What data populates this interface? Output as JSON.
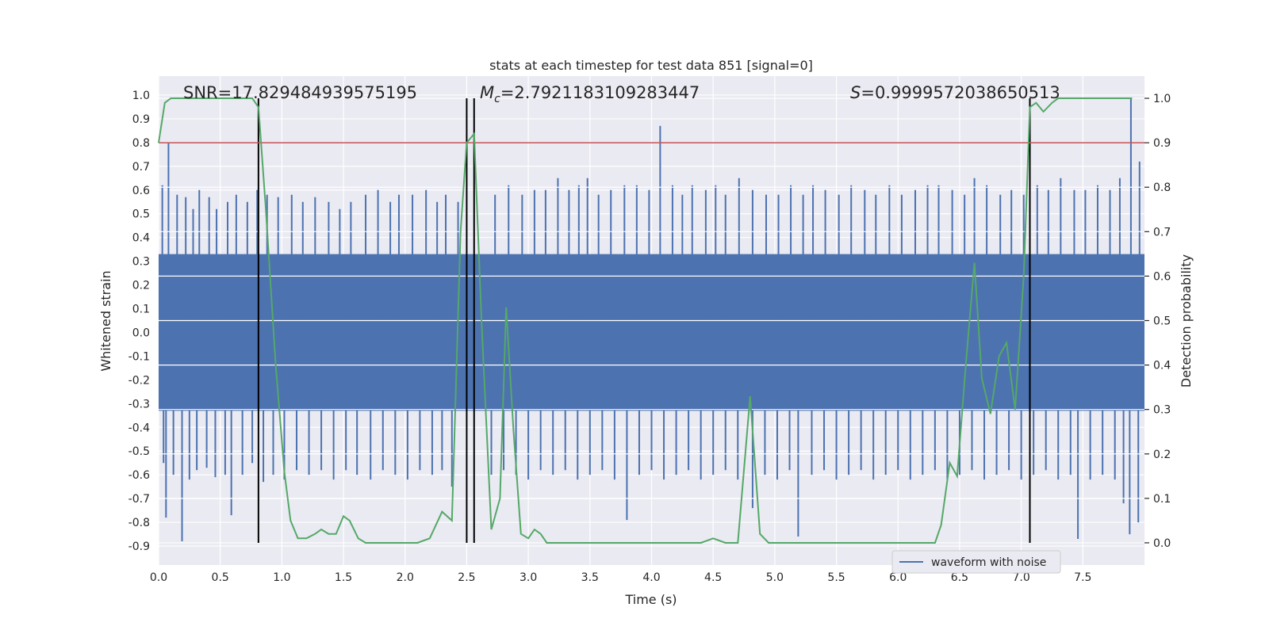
{
  "chart_data": {
    "type": "line",
    "title": "stats at each timestep for test data 851 [signal=0]",
    "xlabel": "Time (s)",
    "ylabel_left": "Whitened strain",
    "ylabel_right": "Detection probability",
    "xlim": [
      0.0,
      8.0
    ],
    "ylim_left": [
      -0.98,
      1.08
    ],
    "ylim_right": [
      -0.05,
      1.05
    ],
    "x_ticks": [
      "0.0",
      "0.5",
      "1.0",
      "1.5",
      "2.0",
      "2.5",
      "3.0",
      "3.5",
      "4.0",
      "4.5",
      "5.0",
      "5.5",
      "6.0",
      "6.5",
      "7.0",
      "7.5"
    ],
    "x_tick_values": [
      0,
      0.5,
      1,
      1.5,
      2,
      2.5,
      3,
      3.5,
      4,
      4.5,
      5,
      5.5,
      6,
      6.5,
      7,
      7.5
    ],
    "y_left_ticks": [
      "1.0",
      "0.9",
      "0.8",
      "0.7",
      "0.6",
      "0.5",
      "0.4",
      "0.3",
      "0.2",
      "0.1",
      "0.0",
      "-0.1",
      "-0.2",
      "-0.3",
      "-0.4",
      "-0.5",
      "-0.6",
      "-0.7",
      "-0.8",
      "-0.9"
    ],
    "y_left_tick_values": [
      1.0,
      0.9,
      0.8,
      0.7,
      0.6,
      0.5,
      0.4,
      0.3,
      0.2,
      0.1,
      0.0,
      -0.1,
      -0.2,
      -0.3,
      -0.4,
      -0.5,
      -0.6,
      -0.7,
      -0.8,
      -0.9
    ],
    "y_right_ticks": [
      "1.0",
      "0.9",
      "0.8",
      "0.7",
      "0.6",
      "0.5",
      "0.4",
      "0.3",
      "0.2",
      "0.1",
      "0.0"
    ],
    "y_right_tick_values": [
      1.0,
      0.9,
      0.8,
      0.7,
      0.6,
      0.5,
      0.4,
      0.3,
      0.2,
      0.1,
      0.0
    ],
    "annotations": {
      "snr": "SNR=17.829484939575195",
      "mc_symbol": "M",
      "mc_sub": "c",
      "mc_value": "=2.7921183109283447",
      "s_symbol": "S",
      "s_value": "=0.9999572038650513"
    },
    "legend": {
      "label": "waveform with noise",
      "location": "lower-right"
    },
    "threshold": {
      "value": 0.9,
      "axis": "right",
      "color": "#c44e52"
    },
    "vertical_lines": [
      0.81,
      2.5,
      2.56,
      7.07
    ],
    "waveform": {
      "name": "waveform with noise",
      "color": "#4c72b0",
      "band": [
        -0.33,
        0.33
      ],
      "spikes_up": [
        [
          0.03,
          0.62
        ],
        [
          0.08,
          0.8
        ],
        [
          0.15,
          0.58
        ],
        [
          0.22,
          0.57
        ],
        [
          0.28,
          0.52
        ],
        [
          0.33,
          0.6
        ],
        [
          0.41,
          0.57
        ],
        [
          0.47,
          0.52
        ],
        [
          0.56,
          0.55
        ],
        [
          0.63,
          0.58
        ],
        [
          0.72,
          0.55
        ],
        [
          0.8,
          0.6
        ],
        [
          0.88,
          0.58
        ],
        [
          0.97,
          0.57
        ],
        [
          1.08,
          0.58
        ],
        [
          1.17,
          0.55
        ],
        [
          1.27,
          0.57
        ],
        [
          1.38,
          0.55
        ],
        [
          1.47,
          0.52
        ],
        [
          1.56,
          0.55
        ],
        [
          1.68,
          0.58
        ],
        [
          1.78,
          0.6
        ],
        [
          1.88,
          0.55
        ],
        [
          1.95,
          0.58
        ],
        [
          2.06,
          0.58
        ],
        [
          2.17,
          0.6
        ],
        [
          2.26,
          0.55
        ],
        [
          2.33,
          0.58
        ],
        [
          2.43,
          0.55
        ],
        [
          2.73,
          0.58
        ],
        [
          2.84,
          0.62
        ],
        [
          2.95,
          0.58
        ],
        [
          3.05,
          0.6
        ],
        [
          3.14,
          0.6
        ],
        [
          3.24,
          0.65
        ],
        [
          3.33,
          0.6
        ],
        [
          3.41,
          0.62
        ],
        [
          3.48,
          0.65
        ],
        [
          3.57,
          0.58
        ],
        [
          3.67,
          0.6
        ],
        [
          3.78,
          0.62
        ],
        [
          3.88,
          0.62
        ],
        [
          3.98,
          0.6
        ],
        [
          4.07,
          0.87
        ],
        [
          4.17,
          0.62
        ],
        [
          4.25,
          0.58
        ],
        [
          4.33,
          0.62
        ],
        [
          4.44,
          0.6
        ],
        [
          4.52,
          0.62
        ],
        [
          4.6,
          0.58
        ],
        [
          4.71,
          0.65
        ],
        [
          4.82,
          0.6
        ],
        [
          4.93,
          0.58
        ],
        [
          5.03,
          0.58
        ],
        [
          5.13,
          0.62
        ],
        [
          5.23,
          0.58
        ],
        [
          5.31,
          0.62
        ],
        [
          5.41,
          0.6
        ],
        [
          5.52,
          0.58
        ],
        [
          5.62,
          0.62
        ],
        [
          5.73,
          0.6
        ],
        [
          5.82,
          0.58
        ],
        [
          5.93,
          0.62
        ],
        [
          6.03,
          0.58
        ],
        [
          6.14,
          0.6
        ],
        [
          6.24,
          0.62
        ],
        [
          6.33,
          0.62
        ],
        [
          6.44,
          0.6
        ],
        [
          6.54,
          0.58
        ],
        [
          6.62,
          0.65
        ],
        [
          6.72,
          0.62
        ],
        [
          6.83,
          0.58
        ],
        [
          6.92,
          0.6
        ],
        [
          7.02,
          0.58
        ],
        [
          7.13,
          0.62
        ],
        [
          7.22,
          0.6
        ],
        [
          7.32,
          0.65
        ],
        [
          7.43,
          0.6
        ],
        [
          7.52,
          0.6
        ],
        [
          7.62,
          0.62
        ],
        [
          7.72,
          0.6
        ],
        [
          7.8,
          0.65
        ],
        [
          7.89,
          0.99
        ],
        [
          7.96,
          0.72
        ]
      ],
      "spikes_down": [
        [
          0.04,
          -0.55
        ],
        [
          0.06,
          -0.78
        ],
        [
          0.12,
          -0.6
        ],
        [
          0.19,
          -0.88
        ],
        [
          0.25,
          -0.62
        ],
        [
          0.31,
          -0.58
        ],
        [
          0.39,
          -0.57
        ],
        [
          0.46,
          -0.61
        ],
        [
          0.54,
          -0.6
        ],
        [
          0.59,
          -0.77
        ],
        [
          0.68,
          -0.6
        ],
        [
          0.76,
          -0.55
        ],
        [
          0.85,
          -0.63
        ],
        [
          0.93,
          -0.6
        ],
        [
          1.02,
          -0.62
        ],
        [
          1.12,
          -0.58
        ],
        [
          1.22,
          -0.6
        ],
        [
          1.32,
          -0.58
        ],
        [
          1.42,
          -0.62
        ],
        [
          1.52,
          -0.58
        ],
        [
          1.61,
          -0.6
        ],
        [
          1.72,
          -0.62
        ],
        [
          1.82,
          -0.58
        ],
        [
          1.92,
          -0.6
        ],
        [
          2.02,
          -0.62
        ],
        [
          2.12,
          -0.58
        ],
        [
          2.22,
          -0.6
        ],
        [
          2.3,
          -0.58
        ],
        [
          2.38,
          -0.65
        ],
        [
          2.7,
          -0.6
        ],
        [
          2.8,
          -0.58
        ],
        [
          2.9,
          -0.6
        ],
        [
          3.0,
          -0.62
        ],
        [
          3.1,
          -0.58
        ],
        [
          3.2,
          -0.6
        ],
        [
          3.3,
          -0.58
        ],
        [
          3.4,
          -0.62
        ],
        [
          3.5,
          -0.6
        ],
        [
          3.6,
          -0.58
        ],
        [
          3.7,
          -0.62
        ],
        [
          3.8,
          -0.79
        ],
        [
          3.9,
          -0.6
        ],
        [
          4.0,
          -0.58
        ],
        [
          4.1,
          -0.62
        ],
        [
          4.2,
          -0.6
        ],
        [
          4.3,
          -0.58
        ],
        [
          4.4,
          -0.62
        ],
        [
          4.5,
          -0.6
        ],
        [
          4.6,
          -0.58
        ],
        [
          4.7,
          -0.62
        ],
        [
          4.82,
          -0.74
        ],
        [
          4.92,
          -0.6
        ],
        [
          5.02,
          -0.62
        ],
        [
          5.12,
          -0.58
        ],
        [
          5.19,
          -0.86
        ],
        [
          5.3,
          -0.6
        ],
        [
          5.4,
          -0.58
        ],
        [
          5.5,
          -0.62
        ],
        [
          5.6,
          -0.6
        ],
        [
          5.7,
          -0.58
        ],
        [
          5.8,
          -0.62
        ],
        [
          5.9,
          -0.6
        ],
        [
          6.0,
          -0.58
        ],
        [
          6.1,
          -0.62
        ],
        [
          6.2,
          -0.6
        ],
        [
          6.3,
          -0.58
        ],
        [
          6.4,
          -0.62
        ],
        [
          6.5,
          -0.6
        ],
        [
          6.6,
          -0.58
        ],
        [
          6.7,
          -0.62
        ],
        [
          6.8,
          -0.6
        ],
        [
          6.9,
          -0.58
        ],
        [
          7.0,
          -0.62
        ],
        [
          7.1,
          -0.6
        ],
        [
          7.2,
          -0.58
        ],
        [
          7.3,
          -0.62
        ],
        [
          7.4,
          -0.6
        ],
        [
          7.46,
          -0.87
        ],
        [
          7.56,
          -0.62
        ],
        [
          7.66,
          -0.6
        ],
        [
          7.76,
          -0.62
        ],
        [
          7.83,
          -0.72
        ],
        [
          7.88,
          -0.85
        ],
        [
          7.95,
          -0.8
        ]
      ]
    },
    "detection_probability": {
      "color": "#55a868",
      "axis": "right",
      "x": [
        0.0,
        0.05,
        0.1,
        0.2,
        0.3,
        0.4,
        0.5,
        0.6,
        0.7,
        0.76,
        0.81,
        0.87,
        0.95,
        1.02,
        1.07,
        1.13,
        1.2,
        1.27,
        1.32,
        1.38,
        1.44,
        1.5,
        1.55,
        1.62,
        1.68,
        1.75,
        1.9,
        2.0,
        2.1,
        2.2,
        2.3,
        2.38,
        2.45,
        2.5,
        2.56,
        2.62,
        2.7,
        2.77,
        2.82,
        2.88,
        2.94,
        3.0,
        3.05,
        3.1,
        3.15,
        3.22,
        3.3,
        3.4,
        3.5,
        3.6,
        3.8,
        4.0,
        4.2,
        4.4,
        4.5,
        4.6,
        4.7,
        4.8,
        4.88,
        4.95,
        5.0,
        5.2,
        5.4,
        5.6,
        5.8,
        6.0,
        6.2,
        6.3,
        6.35,
        6.42,
        6.48,
        6.55,
        6.62,
        6.68,
        6.75,
        6.82,
        6.88,
        6.95,
        7.02,
        7.07,
        7.12,
        7.18,
        7.25,
        7.3,
        7.38,
        7.5,
        7.7,
        7.9
      ],
      "y": [
        0.9,
        0.99,
        1.0,
        1.0,
        1.0,
        1.0,
        1.0,
        1.0,
        1.0,
        1.0,
        0.98,
        0.75,
        0.4,
        0.16,
        0.05,
        0.01,
        0.01,
        0.02,
        0.03,
        0.02,
        0.02,
        0.06,
        0.05,
        0.01,
        0.0,
        0.0,
        0.0,
        0.0,
        0.0,
        0.01,
        0.07,
        0.05,
        0.7,
        0.9,
        0.92,
        0.5,
        0.03,
        0.1,
        0.53,
        0.25,
        0.02,
        0.01,
        0.03,
        0.02,
        0.0,
        0.0,
        0.0,
        0.0,
        0.0,
        0.0,
        0.0,
        0.0,
        0.0,
        0.0,
        0.01,
        0.0,
        0.0,
        0.33,
        0.02,
        0.0,
        0.0,
        0.0,
        0.0,
        0.0,
        0.0,
        0.0,
        0.0,
        0.0,
        0.04,
        0.18,
        0.15,
        0.4,
        0.63,
        0.37,
        0.29,
        0.42,
        0.45,
        0.3,
        0.6,
        0.98,
        0.99,
        0.97,
        0.99,
        1.0,
        1.0,
        1.0,
        1.0,
        1.0
      ]
    }
  }
}
